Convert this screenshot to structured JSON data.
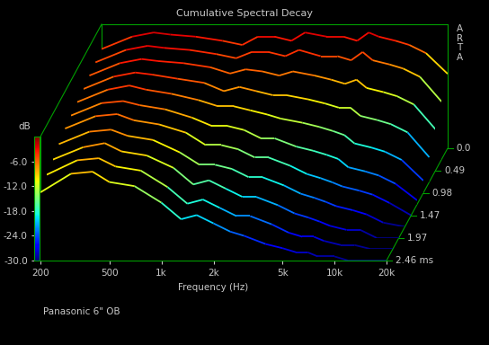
{
  "chart_data": {
    "type": "waterfall",
    "title": "Cumulative Spectral Decay",
    "watermark": "ARTA",
    "caption": "Panasonic 6\" OB",
    "xlabel": "Frequency (Hz)",
    "ylabel": "dB",
    "log": "x",
    "grid": false,
    "xlim": [
      200,
      20000
    ],
    "xticks": [
      200,
      500,
      {
        "value": 1000,
        "label": "1k"
      },
      {
        "value": 2000,
        "label": "2k"
      },
      {
        "value": 5000,
        "label": "5k"
      },
      {
        "value": 10000,
        "label": "10k"
      },
      {
        "value": 20000,
        "label": "20k"
      }
    ],
    "ylim": [
      -30,
      0
    ],
    "yticks": [
      {
        "value": -6,
        "label": "-6.0"
      },
      {
        "value": -12,
        "label": "-12.0"
      },
      {
        "value": -18,
        "label": "-18.0"
      },
      {
        "value": -24,
        "label": "-24.0"
      },
      {
        "value": -30,
        "label": "-30.0"
      }
    ],
    "zlim": [
      0,
      2.46
    ],
    "zticks": [
      0.0,
      0.49,
      0.98,
      1.47,
      1.97,
      {
        "value": 2.46,
        "label": "2.46 ms"
      }
    ],
    "x": [
      200,
      300,
      400,
      500,
      700,
      1000,
      1300,
      1600,
      2000,
      2500,
      3000,
      4000,
      5000,
      6000,
      7000,
      8000,
      10000,
      12000,
      15000,
      20000
    ],
    "slices": [
      {
        "time": 0.0,
        "values": [
          -6,
          -3,
          -2,
          -2.5,
          -3,
          -4,
          -5,
          -3,
          -3,
          -4,
          -2,
          -3,
          -3,
          -4,
          -2,
          -3,
          -4,
          -5,
          -7,
          -12
        ]
      },
      {
        "time": 0.246,
        "values": [
          -6.5,
          -3.5,
          -2.5,
          -3,
          -3.5,
          -4.5,
          -5.5,
          -4,
          -4,
          -5,
          -3.5,
          -5,
          -5,
          -6,
          -4,
          -6,
          -7,
          -8,
          -10,
          -16
        ]
      },
      {
        "time": 0.49,
        "values": [
          -7,
          -4,
          -3,
          -3.5,
          -4,
          -5,
          -6.5,
          -5.5,
          -6,
          -7,
          -6,
          -7,
          -8,
          -9,
          -8,
          -10,
          -11,
          -12,
          -14,
          -20
        ]
      },
      {
        "time": 0.74,
        "values": [
          -7.5,
          -4.5,
          -3.5,
          -4,
          -5,
          -6,
          -8,
          -7,
          -8,
          -9,
          -9,
          -10,
          -11,
          -12,
          -12,
          -14,
          -15,
          -16,
          -18,
          -24
        ]
      },
      {
        "time": 0.98,
        "values": [
          -8,
          -5,
          -4,
          -5,
          -6,
          -7.5,
          -9,
          -9,
          -10,
          -11,
          -12,
          -13,
          -14,
          -15,
          -16,
          -18,
          -19,
          -20,
          -22,
          -27
        ]
      },
      {
        "time": 1.23,
        "values": [
          -8.5,
          -5.5,
          -5,
          -6,
          -7,
          -9,
          -11,
          -11,
          -12,
          -14,
          -14,
          -16,
          -17,
          -18,
          -19,
          -21,
          -22,
          -23,
          -25,
          -29
        ]
      },
      {
        "time": 1.47,
        "values": [
          -9,
          -6,
          -5.5,
          -7,
          -8,
          -10,
          -13,
          -13,
          -14,
          -16,
          -16,
          -18,
          -20,
          -21,
          -22,
          -23,
          -24,
          -25,
          -27,
          -30
        ]
      },
      {
        "time": 1.72,
        "values": [
          -10,
          -7,
          -6.5,
          -8,
          -9,
          -12,
          -15,
          -15,
          -16,
          -18,
          -18,
          -20,
          -22,
          -23,
          -24,
          -25,
          -26,
          -27,
          -29,
          -30
        ]
      },
      {
        "time": 1.97,
        "values": [
          -11,
          -8,
          -7,
          -9,
          -10,
          -13,
          -17,
          -16,
          -18,
          -20,
          -20,
          -22,
          -24,
          -25,
          -26,
          -27,
          -28,
          -28,
          -30,
          -30
        ]
      },
      {
        "time": 2.21,
        "values": [
          -12,
          -8.5,
          -8,
          -10,
          -11,
          -15,
          -19,
          -18,
          -20,
          -22,
          -22,
          -24,
          -26,
          -27,
          -27,
          -28,
          -29,
          -29,
          -30,
          -30
        ]
      },
      {
        "time": 2.46,
        "values": [
          -13.5,
          -9,
          -8.5,
          -11,
          -12,
          -16,
          -20,
          -19,
          -21,
          -23,
          -24,
          -26,
          -27,
          -28,
          -28,
          -29,
          -29,
          -30,
          -30,
          -30
        ]
      }
    ]
  }
}
